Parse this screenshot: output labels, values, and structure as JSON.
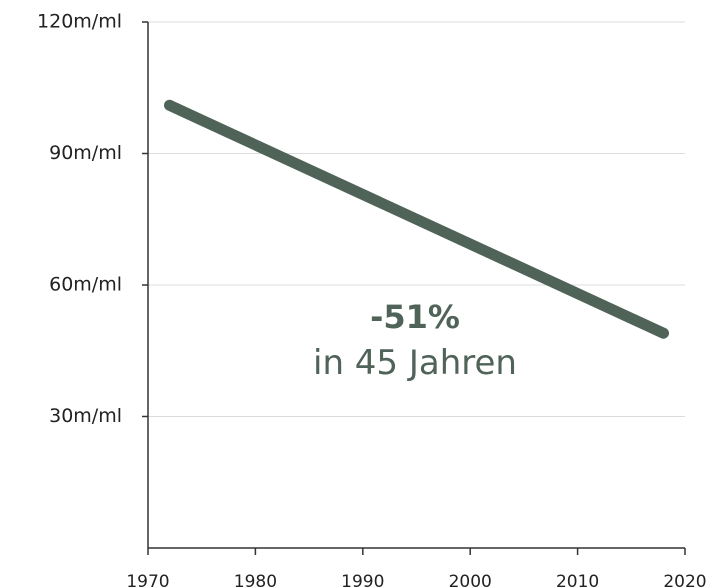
{
  "chart_data": {
    "type": "line",
    "x": [
      1972,
      2018
    ],
    "values": [
      101,
      49
    ],
    "color": "#4f6358",
    "xlim": [
      1970,
      2020
    ],
    "xticks": [
      1970,
      1980,
      1990,
      2000,
      2010,
      2020
    ],
    "ylim": [
      0,
      120
    ],
    "yticks": [
      {
        "value": 30,
        "label": "30m/ml"
      },
      {
        "value": 60,
        "label": "60m/ml"
      },
      {
        "value": 90,
        "label": "90m/ml"
      },
      {
        "value": 120,
        "label": "120m/ml"
      }
    ],
    "grid": true,
    "annotations": [
      "-51%",
      "in 45 Jahren"
    ]
  }
}
